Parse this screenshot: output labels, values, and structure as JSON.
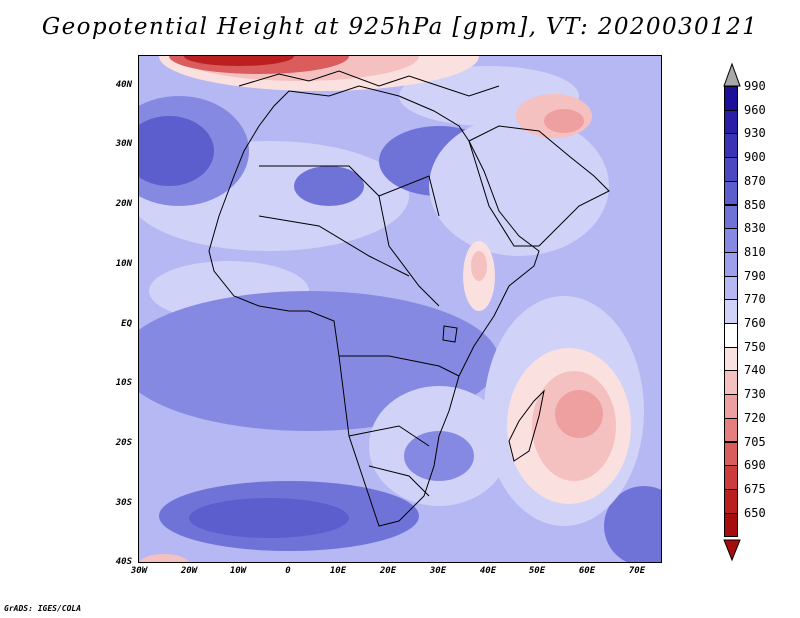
{
  "title": "Geopotential Height at 925hPa [gpm], VT: 2020030121",
  "credit": "GrADS: IGES/COLA",
  "lat_labels": [
    "40N",
    "30N",
    "20N",
    "10N",
    "EQ",
    "10S",
    "20S",
    "30S",
    "40S"
  ],
  "lon_labels": [
    "30W",
    "20W",
    "10W",
    "0",
    "10E",
    "20E",
    "30E",
    "40E",
    "50E",
    "60E",
    "70E"
  ],
  "legend": {
    "levels": [
      "990",
      "960",
      "930",
      "900",
      "870",
      "850",
      "830",
      "810",
      "790",
      "770",
      "760",
      "750",
      "740",
      "730",
      "720",
      "705",
      "690",
      "675",
      "650"
    ],
    "colors": [
      "#1c0f9a",
      "#2a1ea8",
      "#3a33b6",
      "#4b48c2",
      "#5c5ece",
      "#6f73d8",
      "#8589e2",
      "#9ca0ea",
      "#b5b8f2",
      "#d0d2f8",
      "#ffffff",
      "#fbe0e0",
      "#f5c0c0",
      "#ee9f9f",
      "#e57e7e",
      "#da5c5c",
      "#cc3c3c",
      "#bb2020",
      "#a80d0d"
    ],
    "top_arrow_color": "#a8a8a8",
    "bottom_arrow_color": "#a80d0d"
  },
  "field_colors": {
    "ocean_low": "#b5b8f2",
    "high": "#8589e2",
    "higher": "#6f73d8",
    "strong": "#5c5ece",
    "light": "#d0d2f8",
    "pale": "#fbe0e0",
    "pink": "#f5c0c0",
    "rose": "#ee9f9f",
    "red": "#da5c5c",
    "deep_red": "#bb2020"
  }
}
